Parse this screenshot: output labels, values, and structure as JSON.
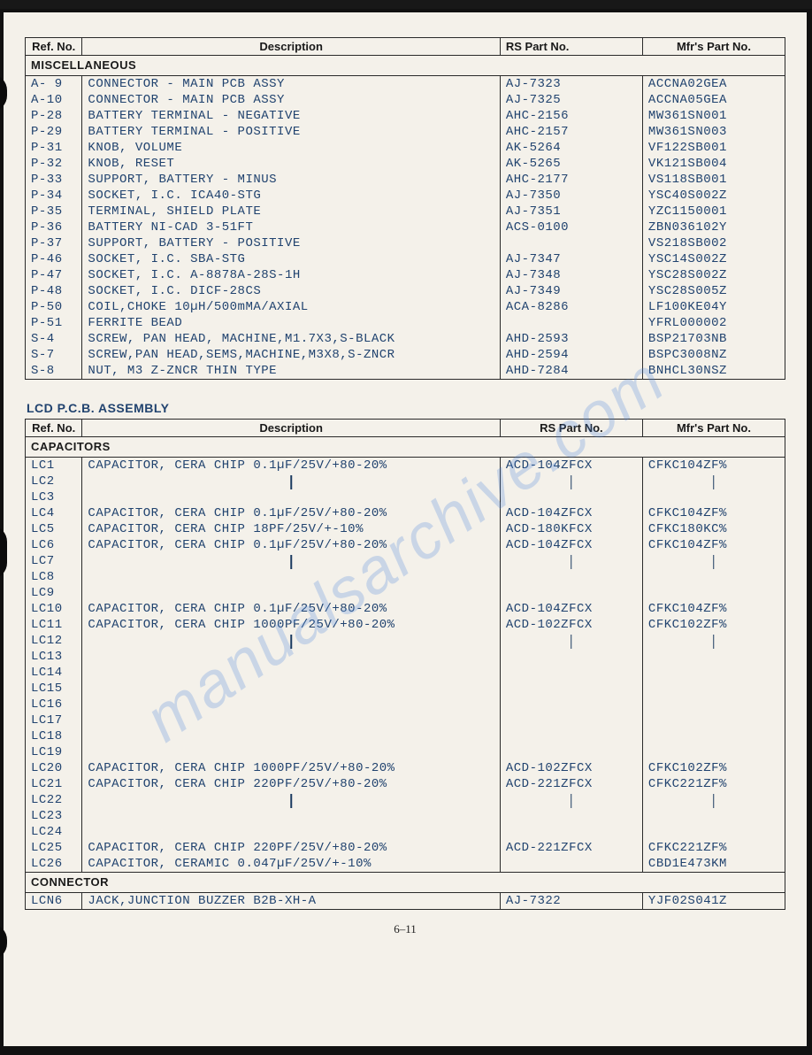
{
  "page_number": "6–11",
  "watermark_text": "manualsarchive.com",
  "table1": {
    "headers": {
      "ref": "Ref. No.",
      "desc": "Description",
      "rs": "RS Part No.",
      "mfr": "Mfr's Part No."
    },
    "section": "MISCELLANEOUS",
    "rows": [
      {
        "ref": "A- 9",
        "desc": "CONNECTOR - MAIN PCB ASSY",
        "rs": "AJ-7323",
        "mfr": "ACCNA02GEA"
      },
      {
        "ref": "A-10",
        "desc": "CONNECTOR - MAIN PCB ASSY",
        "rs": "AJ-7325",
        "mfr": "ACCNA05GEA"
      },
      {
        "ref": "P-28",
        "desc": "BATTERY TERMINAL - NEGATIVE",
        "rs": "AHC-2156",
        "mfr": "MW361SN001"
      },
      {
        "ref": "P-29",
        "desc": "BATTERY TERMINAL - POSITIVE",
        "rs": "AHC-2157",
        "mfr": "MW361SN003"
      },
      {
        "ref": "P-31",
        "desc": "KNOB, VOLUME",
        "rs": "AK-5264",
        "mfr": "VF122SB001"
      },
      {
        "ref": "P-32",
        "desc": "KNOB, RESET",
        "rs": "AK-5265",
        "mfr": "VK121SB004"
      },
      {
        "ref": "P-33",
        "desc": "SUPPORT, BATTERY - MINUS",
        "rs": "AHC-2177",
        "mfr": "VS118SB001"
      },
      {
        "ref": "P-34",
        "desc": "SOCKET, I.C. ICA40-STG",
        "rs": "AJ-7350",
        "mfr": "YSC40S002Z"
      },
      {
        "ref": "P-35",
        "desc": "TERMINAL, SHIELD PLATE",
        "rs": "AJ-7351",
        "mfr": "YZC1150001"
      },
      {
        "ref": "P-36",
        "desc": "BATTERY NI-CAD 3-51FT",
        "rs": "ACS-0100",
        "mfr": "ZBN036102Y"
      },
      {
        "ref": "P-37",
        "desc": "SUPPORT, BATTERY - POSITIVE",
        "rs": "",
        "mfr": "VS218SB002"
      },
      {
        "ref": "P-46",
        "desc": "SOCKET, I.C. SBA-STG",
        "rs": "AJ-7347",
        "mfr": "YSC14S002Z"
      },
      {
        "ref": "P-47",
        "desc": "SOCKET, I.C. A-8878A-28S-1H",
        "rs": "AJ-7348",
        "mfr": "YSC28S002Z"
      },
      {
        "ref": "P-48",
        "desc": "SOCKET, I.C. DICF-28CS",
        "rs": "AJ-7349",
        "mfr": "YSC28S005Z"
      },
      {
        "ref": "P-50",
        "desc": "COIL,CHOKE 10µH/500mMA/AXIAL",
        "rs": "ACA-8286",
        "mfr": "LF100KE04Y"
      },
      {
        "ref": "P-51",
        "desc": "FERRITE BEAD",
        "rs": "",
        "mfr": "YFRL000002"
      },
      {
        "ref": "S-4",
        "desc": "SCREW, PAN HEAD, MACHINE,M1.7X3,S-BLACK",
        "rs": "AHD-2593",
        "mfr": "BSP21703NB"
      },
      {
        "ref": "S-7",
        "desc": "SCREW,PAN HEAD,SEMS,MACHINE,M3X8,S-ZNCR",
        "rs": "AHD-2594",
        "mfr": "BSPC3008NZ"
      },
      {
        "ref": "S-8",
        "desc": "NUT, M3 Z-ZNCR THIN TYPE",
        "rs": "AHD-7284",
        "mfr": "BNHCL30NSZ"
      }
    ]
  },
  "assembly_title": "LCD P.C.B. ASSEMBLY",
  "table2": {
    "headers": {
      "ref": "Ref. No.",
      "desc": "Description",
      "rs": "RS Part No.",
      "mfr": "Mfr's Part No."
    },
    "sections": [
      {
        "name": "CAPACITORS",
        "rows": [
          {
            "ref": "LC1",
            "desc": "CAPACITOR, CERA CHIP 0.1µF/25V/+80-20%",
            "rs": "ACD-104ZFCX",
            "mfr": "CFKC104ZF%"
          },
          {
            "ref": "LC2",
            "desc": "arrow",
            "rs": "arrow",
            "mfr": "arrow"
          },
          {
            "ref": "LC3",
            "desc": "arrow-end",
            "rs": "arrow-end",
            "mfr": "arrow-end"
          },
          {
            "ref": "LC4",
            "desc": "CAPACITOR, CERA CHIP 0.1µF/25V/+80-20%",
            "rs": "ACD-104ZFCX",
            "mfr": "CFKC104ZF%"
          },
          {
            "ref": "LC5",
            "desc": "CAPACITOR, CERA CHIP 18PF/25V/+-10%",
            "rs": "ACD-180KFCX",
            "mfr": "CFKC180KC%"
          },
          {
            "ref": "LC6",
            "desc": "CAPACITOR, CERA CHIP 0.1µF/25V/+80-20%",
            "rs": "ACD-104ZFCX",
            "mfr": "CFKC104ZF%"
          },
          {
            "ref": "LC7",
            "desc": "arrow",
            "rs": "arrow",
            "mfr": "arrow"
          },
          {
            "ref": "LC8",
            "desc": "arrow",
            "rs": "arrow",
            "mfr": "arrow"
          },
          {
            "ref": "LC9",
            "desc": "arrow-end",
            "rs": "arrow-end",
            "mfr": "arrow-end"
          },
          {
            "ref": "LC10",
            "desc": "CAPACITOR, CERA CHIP 0.1µF/25V/+80-20%",
            "rs": "ACD-104ZFCX",
            "mfr": "CFKC104ZF%"
          },
          {
            "ref": "LC11",
            "desc": "CAPACITOR, CERA CHIP 1000PF/25V/+80-20%",
            "rs": "ACD-102ZFCX",
            "mfr": "CFKC102ZF%"
          },
          {
            "ref": "LC12",
            "desc": "arrow",
            "rs": "arrow",
            "mfr": "arrow"
          },
          {
            "ref": "LC13",
            "desc": "arrow",
            "rs": "arrow",
            "mfr": "arrow"
          },
          {
            "ref": "LC14",
            "desc": "arrow",
            "rs": "arrow",
            "mfr": "arrow"
          },
          {
            "ref": "LC15",
            "desc": "arrow",
            "rs": "arrow",
            "mfr": "arrow"
          },
          {
            "ref": "LC16",
            "desc": "arrow",
            "rs": "arrow",
            "mfr": "arrow"
          },
          {
            "ref": "LC17",
            "desc": "arrow",
            "rs": "arrow",
            "mfr": "arrow"
          },
          {
            "ref": "LC18",
            "desc": "arrow",
            "rs": "arrow",
            "mfr": "arrow"
          },
          {
            "ref": "LC19",
            "desc": "arrow-end",
            "rs": "arrow-end",
            "mfr": "arrow-end"
          },
          {
            "ref": "LC20",
            "desc": "CAPACITOR, CERA CHIP 1000PF/25V/+80-20%",
            "rs": "ACD-102ZFCX",
            "mfr": "CFKC102ZF%"
          },
          {
            "ref": "LC21",
            "desc": "CAPACITOR, CERA CHIP 220PF/25V/+80-20%",
            "rs": "ACD-221ZFCX",
            "mfr": "CFKC221ZF%"
          },
          {
            "ref": "LC22",
            "desc": "arrow",
            "rs": "arrow",
            "mfr": "arrow"
          },
          {
            "ref": "LC23",
            "desc": "arrow",
            "rs": "arrow",
            "mfr": "arrow"
          },
          {
            "ref": "LC24",
            "desc": "arrow-end",
            "rs": "arrow-end",
            "mfr": "arrow-end"
          },
          {
            "ref": "LC25",
            "desc": "CAPACITOR, CERA CHIP 220PF/25V/+80-20%",
            "rs": "ACD-221ZFCX",
            "mfr": "CFKC221ZF%"
          },
          {
            "ref": "LC26",
            "desc": "CAPACITOR, CERAMIC 0.047µF/25V/+-10%",
            "rs": "",
            "mfr": "CBD1E473KM"
          }
        ]
      },
      {
        "name": "CONNECTOR",
        "rows": [
          {
            "ref": "LCN6",
            "desc": "JACK,JUNCTION BUZZER B2B-XH-A",
            "rs": "AJ-7322",
            "mfr": "YJF02S041Z"
          }
        ]
      }
    ]
  },
  "colors": {
    "page_bg": "#f4f1ea",
    "border": "#2a2a2a",
    "text_data": "#21436f",
    "text_header": "#1a1a1a",
    "watermark": "rgba(70,130,220,0.25)"
  }
}
